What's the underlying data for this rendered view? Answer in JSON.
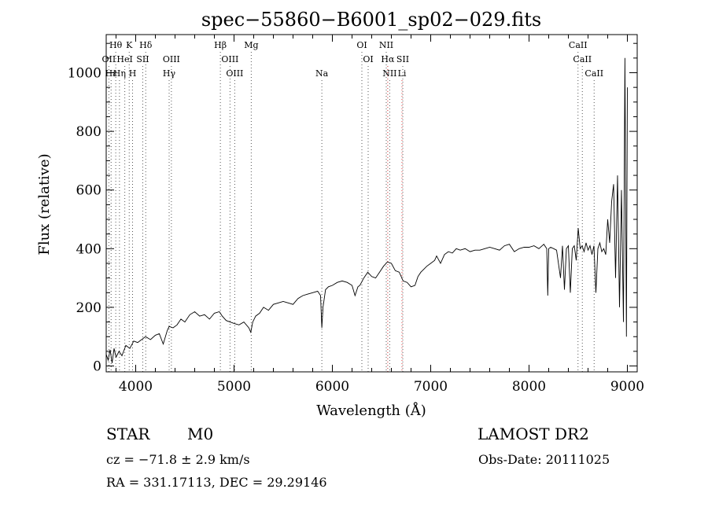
{
  "chart_data": {
    "type": "line",
    "title": "spec−55860−B6001_sp02−029.fits",
    "xlabel": "Wavelength (Å)",
    "ylabel": "Flux (relative)",
    "xlim": [
      3700,
      9100
    ],
    "ylim": [
      -20,
      1130
    ],
    "xticks": [
      4000,
      5000,
      6000,
      7000,
      8000,
      9000
    ],
    "yticks": [
      0,
      200,
      400,
      600,
      800,
      1000
    ],
    "xtick_labels": [
      "4000",
      "5000",
      "6000",
      "7000",
      "8000",
      "9000"
    ],
    "ytick_labels": [
      "0",
      "200",
      "400",
      "600",
      "800",
      "1000"
    ],
    "grid": false,
    "series": [
      {
        "color": "#000000",
        "x": [
          3700,
          3720,
          3740,
          3760,
          3780,
          3800,
          3830,
          3860,
          3900,
          3940,
          3980,
          4020,
          4060,
          4100,
          4150,
          4200,
          4240,
          4280,
          4320,
          4340,
          4380,
          4420,
          4460,
          4500,
          4550,
          4600,
          4650,
          4700,
          4750,
          4800,
          4850,
          4861,
          4880,
          4920,
          4960,
          5000,
          5050,
          5100,
          5150,
          5170,
          5190,
          5220,
          5260,
          5300,
          5350,
          5400,
          5450,
          5500,
          5550,
          5600,
          5650,
          5700,
          5750,
          5800,
          5850,
          5880,
          5893,
          5905,
          5930,
          5960,
          6000,
          6050,
          6100,
          6150,
          6200,
          6230,
          6260,
          6280,
          6320,
          6360,
          6400,
          6440,
          6480,
          6520,
          6560,
          6600,
          6640,
          6680,
          6720,
          6760,
          6800,
          6840,
          6870,
          6900,
          6930,
          6960,
          7000,
          7040,
          7060,
          7100,
          7140,
          7180,
          7220,
          7260,
          7300,
          7350,
          7400,
          7450,
          7500,
          7550,
          7600,
          7650,
          7700,
          7750,
          7800,
          7850,
          7900,
          7950,
          8000,
          8050,
          8100,
          8150,
          8180,
          8190,
          8200,
          8220,
          8250,
          8280,
          8320,
          8340,
          8360,
          8380,
          8400,
          8420,
          8440,
          8460,
          8480,
          8500,
          8520,
          8540,
          8560,
          8580,
          8600,
          8620,
          8640,
          8660,
          8680,
          8700,
          8720,
          8740,
          8760,
          8780,
          8800,
          8820,
          8840,
          8860,
          8880,
          8900,
          8920,
          8940,
          8960,
          8975,
          8990,
          9000
        ],
        "y": [
          40,
          20,
          55,
          10,
          60,
          30,
          50,
          35,
          70,
          60,
          85,
          80,
          90,
          100,
          90,
          105,
          110,
          75,
          120,
          135,
          130,
          140,
          160,
          150,
          175,
          185,
          170,
          175,
          160,
          180,
          185,
          180,
          170,
          155,
          150,
          145,
          140,
          150,
          130,
          115,
          150,
          170,
          180,
          200,
          190,
          210,
          215,
          220,
          215,
          210,
          230,
          240,
          245,
          250,
          255,
          240,
          130,
          200,
          260,
          270,
          275,
          285,
          290,
          285,
          275,
          240,
          270,
          275,
          300,
          320,
          305,
          300,
          320,
          340,
          355,
          350,
          325,
          320,
          290,
          285,
          270,
          275,
          305,
          320,
          330,
          340,
          350,
          360,
          375,
          350,
          380,
          390,
          385,
          400,
          395,
          400,
          390,
          395,
          395,
          400,
          405,
          400,
          395,
          410,
          415,
          390,
          400,
          405,
          405,
          410,
          400,
          415,
          400,
          240,
          400,
          405,
          400,
          395,
          300,
          410,
          260,
          400,
          410,
          250,
          400,
          410,
          360,
          470,
          400,
          410,
          390,
          420,
          395,
          410,
          380,
          410,
          250,
          400,
          420,
          390,
          400,
          380,
          500,
          420,
          560,
          620,
          300,
          650,
          200,
          600,
          150,
          1050,
          100,
          950
        ]
      }
    ],
    "line_markers": [
      {
        "label": "Hθ",
        "x": 3797,
        "row": 0
      },
      {
        "label": "K",
        "x": 3934,
        "row": 0
      },
      {
        "label": "Hδ",
        "x": 4102,
        "row": 0
      },
      {
        "label": "Hβ",
        "x": 4861,
        "row": 0
      },
      {
        "label": "Mg",
        "x": 5175,
        "row": 0
      },
      {
        "label": "OI",
        "x": 6300,
        "row": 0
      },
      {
        "label": "NII",
        "x": 6548,
        "row": 0
      },
      {
        "label": "CaII",
        "x": 8498,
        "row": 0
      },
      {
        "label": "OII",
        "x": 3727,
        "row": 1
      },
      {
        "label": "HeI",
        "x": 3889,
        "row": 1
      },
      {
        "label": "SII",
        "x": 4072,
        "row": 1
      },
      {
        "label": "OIII",
        "x": 4363,
        "row": 1
      },
      {
        "label": "OIII",
        "x": 4959,
        "row": 1
      },
      {
        "label": "OI",
        "x": 6364,
        "row": 1
      },
      {
        "label": "Hα",
        "x": 6563,
        "row": 1
      },
      {
        "label": "SII",
        "x": 6716,
        "row": 1
      },
      {
        "label": "CaII",
        "x": 8542,
        "row": 1
      },
      {
        "label": "Hε",
        "x": 3750,
        "row": 2
      },
      {
        "label": "Hη",
        "x": 3835,
        "row": 2
      },
      {
        "label": "H",
        "x": 3968,
        "row": 2
      },
      {
        "label": "Hγ",
        "x": 4340,
        "row": 2
      },
      {
        "label": "OIII",
        "x": 5007,
        "row": 2
      },
      {
        "label": "Na",
        "x": 5893,
        "row": 2
      },
      {
        "label": "NII",
        "x": 6583,
        "row": 2
      },
      {
        "label": "Li",
        "x": 6708,
        "row": 2
      },
      {
        "label": "CaII",
        "x": 8662,
        "row": 2
      }
    ]
  },
  "info": {
    "object_type": "STAR",
    "object_class": "M0",
    "survey": "LAMOST DR2",
    "cz": "cz = −71.8 ± 2.9 km/s",
    "obs_date": "Obs-Date: 20111025",
    "radec": "RA = 331.17113, DEC =  29.29146"
  }
}
